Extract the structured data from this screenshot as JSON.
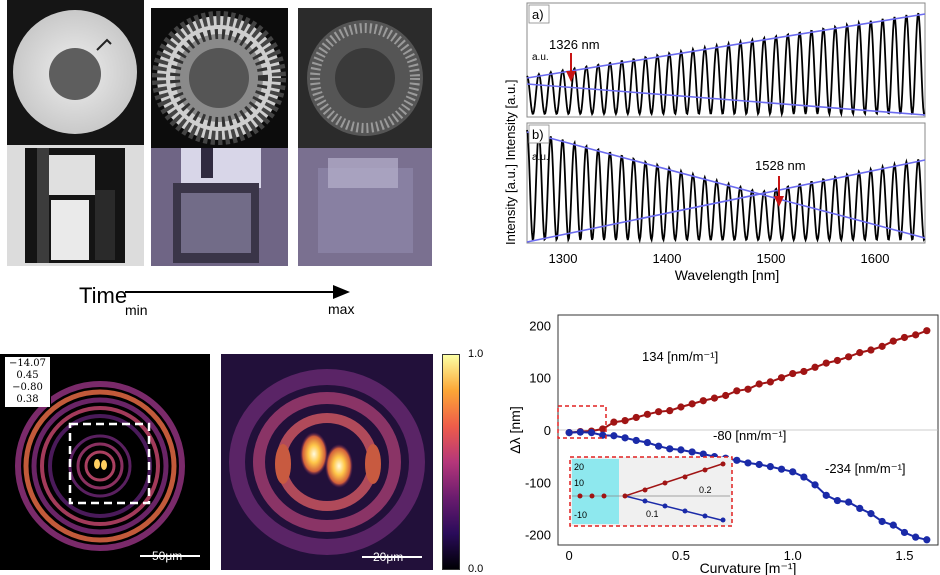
{
  "timeline": {
    "label": "Time",
    "min": "min",
    "max": "max"
  },
  "jones_vector": [
    "−14.07",
    "0.45",
    "−0.80",
    "0.38"
  ],
  "scalebars": {
    "left": "50μm",
    "right": "20μm"
  },
  "colorbar": {
    "max": "1.0",
    "min": "0.0"
  },
  "spectra": {
    "xlabel": "Wavelength [nm]",
    "ylabel": "Intensity [a.u.]",
    "xticks": [
      "1300",
      "1400",
      "1500",
      "1600"
    ],
    "panel_a": {
      "tag": "a)",
      "annotation": "1326 nm"
    },
    "panel_b": {
      "tag": "b)",
      "annotation": "1528 nm"
    }
  },
  "chart_data": {
    "type": "scatter",
    "xlabel": "Curvature [m⁻¹]",
    "ylabel": "Δλ [nm]",
    "xlim": [
      -0.05,
      1.65
    ],
    "ylim": [
      -220,
      220
    ],
    "xticks": [
      "0",
      "0.5",
      "1.0",
      "1.5"
    ],
    "yticks": [
      "200",
      "100",
      "0",
      "-100",
      "-200"
    ],
    "series": [
      {
        "name": "red",
        "color": "#a01414",
        "x": [
          0,
          0.05,
          0.1,
          0.15,
          0.2,
          0.25,
          0.3,
          0.35,
          0.4,
          0.45,
          0.5,
          0.55,
          0.6,
          0.65,
          0.7,
          0.75,
          0.8,
          0.85,
          0.9,
          0.95,
          1.0,
          1.05,
          1.1,
          1.15,
          1.2,
          1.25,
          1.3,
          1.35,
          1.4,
          1.45,
          1.5,
          1.55,
          1.6
        ],
        "y": [
          -5,
          -3,
          -2,
          2,
          15,
          18,
          24,
          30,
          35,
          37,
          44,
          50,
          56,
          61,
          66,
          75,
          78,
          88,
          92,
          100,
          108,
          112,
          120,
          128,
          133,
          140,
          148,
          153,
          160,
          170,
          177,
          182,
          190
        ]
      },
      {
        "name": "blue",
        "color": "#1a2aa8",
        "x": [
          0,
          0.05,
          0.1,
          0.15,
          0.2,
          0.25,
          0.3,
          0.35,
          0.4,
          0.45,
          0.5,
          0.55,
          0.6,
          0.65,
          0.7,
          0.75,
          0.8,
          0.85,
          0.9,
          0.95,
          1.0,
          1.05,
          1.1,
          1.15,
          1.2,
          1.25,
          1.3,
          1.35,
          1.4,
          1.45,
          1.5,
          1.55,
          1.6
        ],
        "y": [
          -5,
          -4,
          -5,
          -10,
          -11,
          -15,
          -20,
          -24,
          -31,
          -36,
          -38,
          -42,
          -46,
          -51,
          -54,
          -58,
          -63,
          -66,
          -70,
          -75,
          -80,
          -90,
          -105,
          -125,
          -135,
          -138,
          -150,
          -160,
          -175,
          -182,
          -196,
          -205,
          -210
        ]
      }
    ],
    "annotations": [
      "134 [nm/m⁻¹]",
      "-80 [nm/m⁻¹]",
      "-234 [nm/m⁻¹]"
    ],
    "inset": {
      "yticks": [
        "20",
        "10",
        "-10"
      ],
      "xticks": [
        "0.1",
        "0.2"
      ]
    }
  }
}
